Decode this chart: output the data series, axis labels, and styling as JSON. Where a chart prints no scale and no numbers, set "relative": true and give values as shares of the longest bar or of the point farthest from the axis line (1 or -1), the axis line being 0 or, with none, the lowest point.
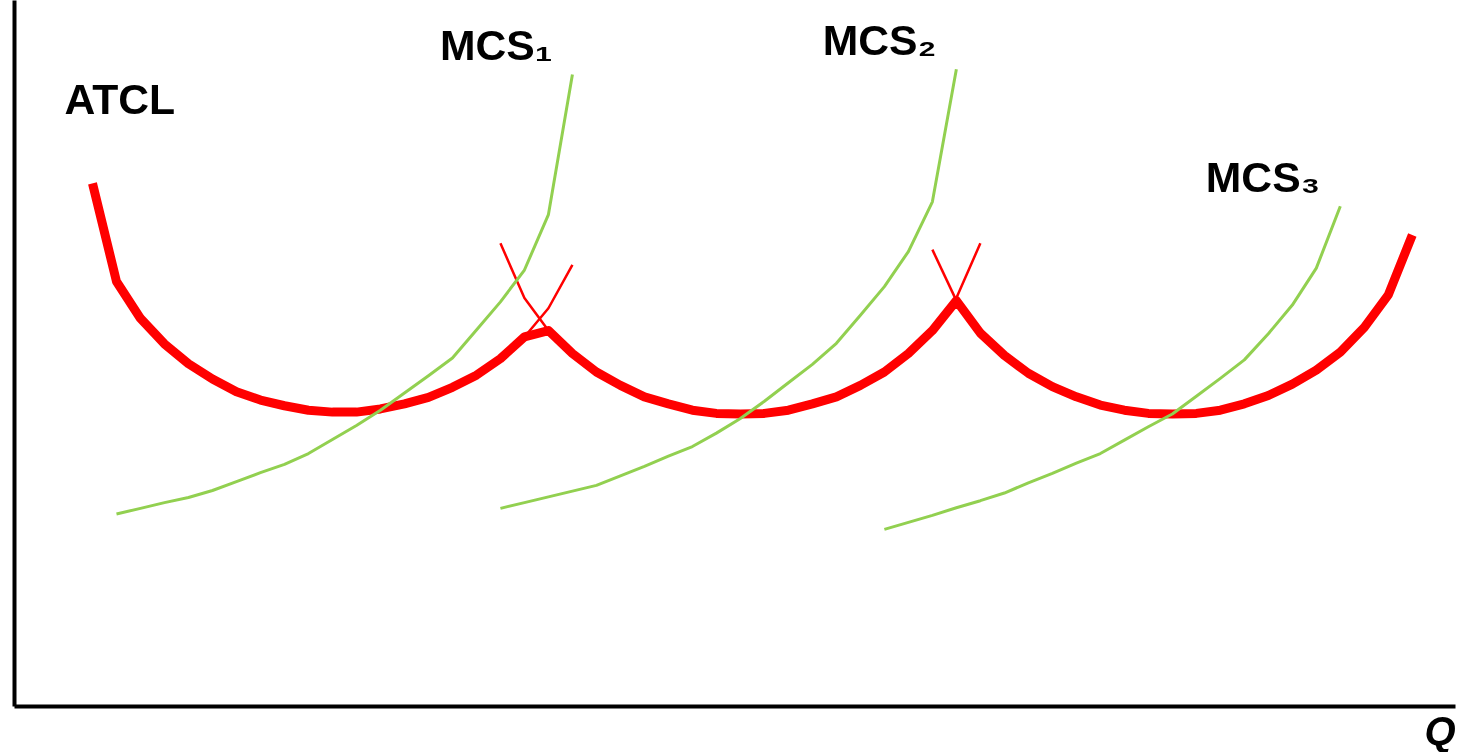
{
  "chart_data": {
    "type": "line",
    "relative": true,
    "xlabel": "Q",
    "categories": [
      null,
      null,
      null,
      null,
      null,
      null,
      null,
      null,
      null,
      null,
      null,
      null,
      null,
      null,
      null,
      null,
      null,
      null,
      null,
      null,
      null,
      null,
      null,
      null,
      null,
      null,
      null,
      null,
      null,
      null,
      null,
      null,
      null,
      null,
      null,
      null,
      null,
      null,
      null,
      null,
      null,
      null,
      null,
      null,
      null,
      null,
      null,
      null,
      null,
      null,
      null,
      null,
      null,
      null,
      null,
      null,
      null
    ],
    "series": [
      {
        "name": "ATCL",
        "color": "#ff0000",
        "values": [
          0.821,
          0.667,
          0.609,
          0.569,
          0.538,
          0.514,
          0.494,
          0.481,
          0.472,
          0.465,
          0.462,
          0.462,
          0.467,
          0.475,
          0.485,
          0.501,
          0.52,
          0.546,
          0.58,
          0.59,
          0.554,
          0.525,
          0.504,
          0.486,
          0.475,
          0.465,
          0.46,
          0.459,
          0.46,
          0.465,
          0.475,
          0.486,
          0.504,
          0.525,
          0.554,
          0.59,
          0.637,
          0.586,
          0.551,
          0.523,
          0.502,
          0.486,
          0.473,
          0.465,
          0.46,
          0.459,
          0.46,
          0.465,
          0.475,
          0.488,
          0.506,
          0.528,
          0.556,
          0.595,
          0.646,
          0.74,
          null
        ]
      },
      {
        "color": "#ff0000",
        "values": [
          null,
          null,
          null,
          null,
          null,
          null,
          null,
          null,
          null,
          null,
          null,
          null,
          null,
          null,
          null,
          null,
          null,
          null,
          0.58,
          0.625,
          0.693,
          null,
          null,
          null,
          null,
          null,
          null,
          null,
          null,
          null,
          null,
          null,
          null,
          null,
          null,
          null,
          null,
          null,
          null,
          null,
          null,
          null,
          null,
          null,
          null,
          null,
          null,
          null,
          null,
          null,
          null,
          null,
          null,
          null,
          null,
          null,
          null
        ]
      },
      {
        "color": "#ff0000",
        "values": [
          null,
          null,
          null,
          null,
          null,
          null,
          null,
          null,
          null,
          null,
          null,
          null,
          null,
          null,
          null,
          null,
          null,
          0.727,
          0.641,
          0.59,
          null,
          null,
          null,
          null,
          null,
          null,
          null,
          null,
          null,
          null,
          null,
          null,
          null,
          null,
          null,
          null,
          null,
          null,
          null,
          null,
          null,
          null,
          null,
          null,
          null,
          null,
          null,
          null,
          null,
          null,
          null,
          null,
          null,
          null,
          null,
          null,
          null
        ]
      },
      {
        "color": "#ff0000",
        "values": [
          null,
          null,
          null,
          null,
          null,
          null,
          null,
          null,
          null,
          null,
          null,
          null,
          null,
          null,
          null,
          null,
          null,
          null,
          null,
          null,
          null,
          null,
          null,
          null,
          null,
          null,
          null,
          null,
          null,
          null,
          null,
          null,
          null,
          null,
          null,
          0.59,
          0.641,
          0.727,
          null,
          null,
          null,
          null,
          null,
          null,
          null,
          null,
          null,
          null,
          null,
          null,
          null,
          null,
          null,
          null,
          null,
          null,
          null
        ]
      },
      {
        "color": "#ff0000",
        "values": [
          null,
          null,
          null,
          null,
          null,
          null,
          null,
          null,
          null,
          null,
          null,
          null,
          null,
          null,
          null,
          null,
          null,
          null,
          null,
          null,
          null,
          null,
          null,
          null,
          null,
          null,
          null,
          null,
          null,
          null,
          null,
          null,
          null,
          null,
          null,
          0.717,
          0.637,
          null,
          null,
          null,
          null,
          null,
          null,
          null,
          null,
          null,
          null,
          null,
          null,
          null,
          null,
          null,
          null,
          null,
          null,
          null,
          null
        ]
      },
      {
        "name": "MCS₁",
        "color": "#92d050",
        "values": [
          null,
          0.302,
          0.311,
          0.32,
          0.328,
          0.339,
          0.353,
          0.367,
          0.38,
          0.397,
          0.419,
          0.441,
          0.465,
          0.492,
          0.519,
          0.547,
          0.591,
          0.635,
          0.685,
          0.772,
          0.992,
          null,
          null,
          null,
          null,
          null,
          null,
          null,
          null,
          null,
          null,
          null,
          null,
          null,
          null,
          null,
          null,
          null,
          null,
          null,
          null,
          null,
          null,
          null,
          null,
          null,
          null,
          null,
          null,
          null,
          null,
          null,
          null,
          null,
          null,
          null,
          null
        ]
      },
      {
        "name": "MCS₂",
        "color": "#92d050",
        "values": [
          null,
          null,
          null,
          null,
          null,
          null,
          null,
          null,
          null,
          null,
          null,
          null,
          null,
          null,
          null,
          null,
          null,
          0.311,
          0.32,
          0.329,
          0.338,
          0.347,
          0.362,
          0.377,
          0.393,
          0.408,
          0.429,
          0.452,
          0.479,
          0.508,
          0.537,
          0.57,
          0.614,
          0.659,
          0.714,
          0.792,
          1.0,
          null,
          null,
          null,
          null,
          null,
          null,
          null,
          null,
          null,
          null,
          null,
          null,
          null,
          null,
          null,
          null,
          null,
          null,
          null,
          null
        ]
      },
      {
        "name": "MCS₃",
        "color": "#92d050",
        "values": [
          null,
          null,
          null,
          null,
          null,
          null,
          null,
          null,
          null,
          null,
          null,
          null,
          null,
          null,
          null,
          null,
          null,
          null,
          null,
          null,
          null,
          null,
          null,
          null,
          null,
          null,
          null,
          null,
          null,
          null,
          null,
          null,
          null,
          0.278,
          0.289,
          0.3,
          0.312,
          0.323,
          0.335,
          0.351,
          0.366,
          0.382,
          0.397,
          0.418,
          0.439,
          0.459,
          0.487,
          0.515,
          0.544,
          0.585,
          0.63,
          0.688,
          0.785,
          null,
          null,
          null,
          null
        ]
      }
    ]
  }
}
